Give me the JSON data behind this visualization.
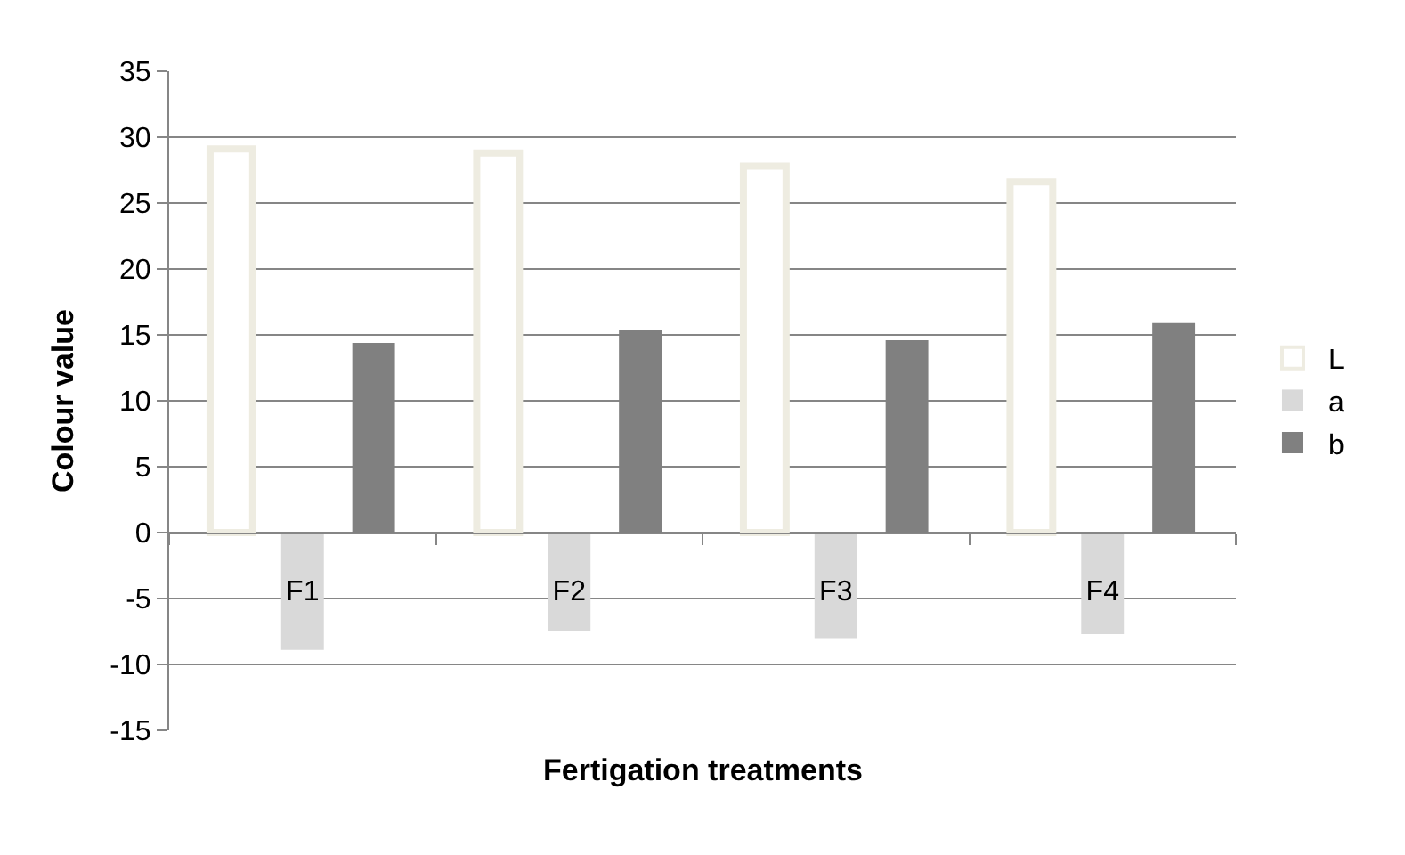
{
  "chart_data": {
    "type": "bar",
    "xlabel": "Fertigation treatments",
    "ylabel": "Colour value",
    "categories": [
      "F1",
      "F2",
      "F3",
      "F4"
    ],
    "series": [
      {
        "name": "L",
        "color": "#eeece1",
        "values": [
          29.1,
          28.8,
          27.8,
          26.6
        ]
      },
      {
        "name": "a",
        "color": "#d9d9d9",
        "values": [
          -8.9,
          -7.5,
          -8.0,
          -7.7
        ]
      },
      {
        "name": "b",
        "color": "#808080",
        "values": [
          14.4,
          15.4,
          14.6,
          15.9
        ]
      }
    ],
    "ylim": [
      -15,
      35
    ],
    "yticks": [
      -15,
      -10,
      -5,
      0,
      5,
      10,
      15,
      20,
      25,
      30,
      35
    ],
    "grid": "y",
    "legend": "right"
  }
}
